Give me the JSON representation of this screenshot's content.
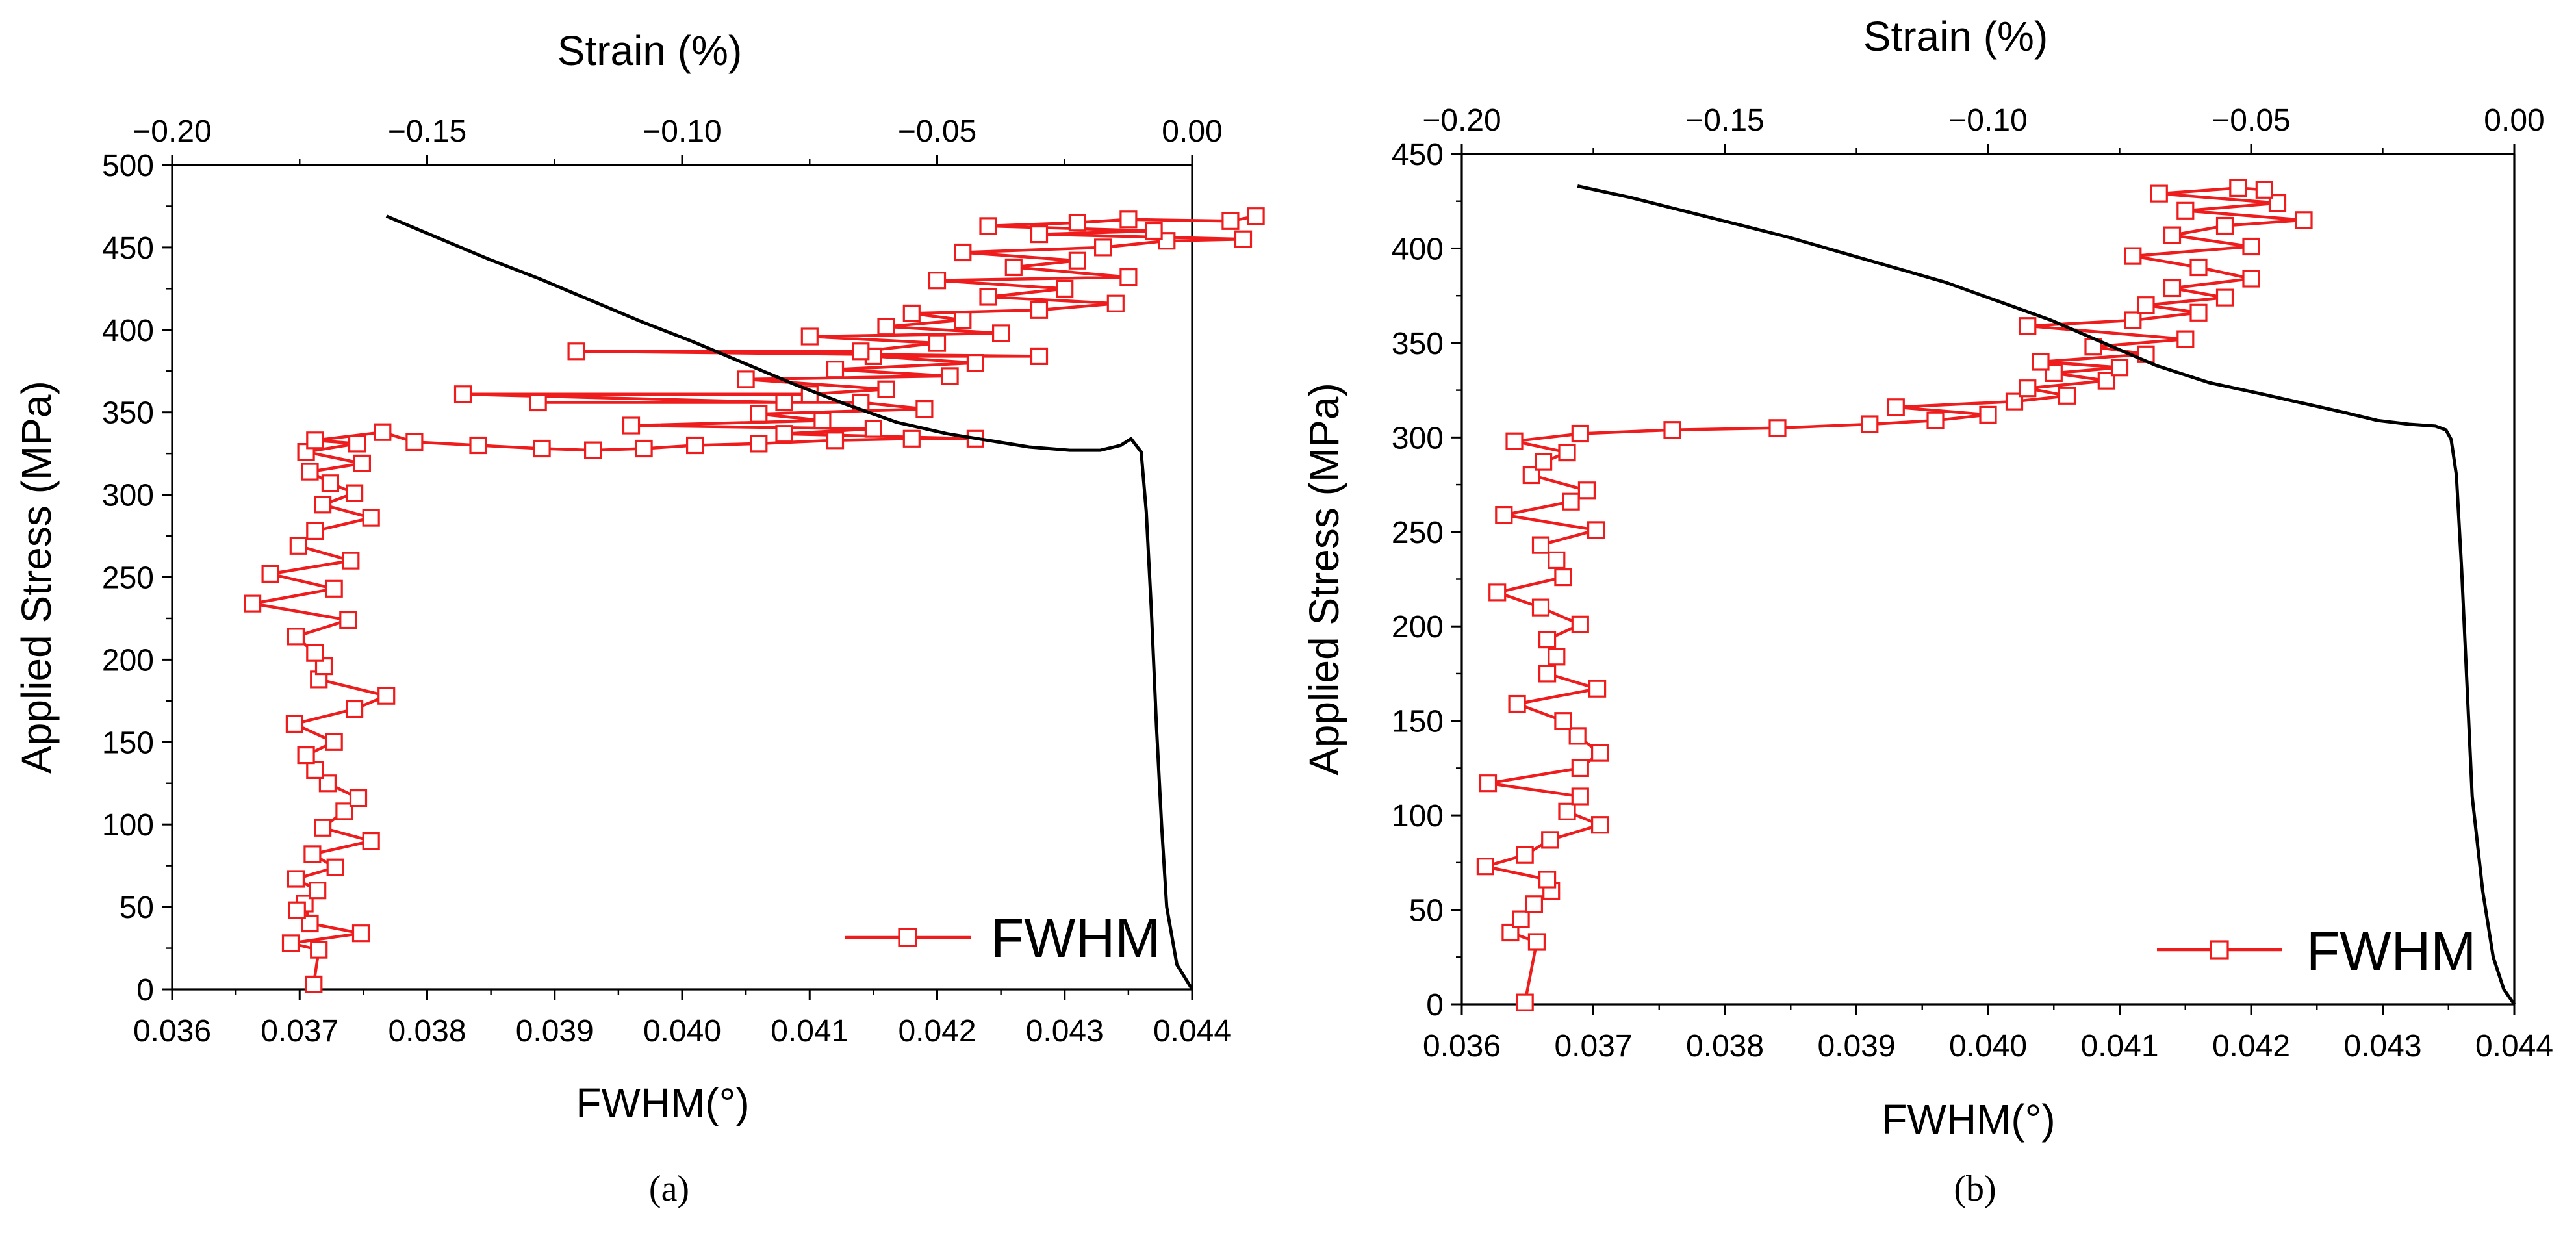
{
  "chart_data": [
    {
      "type": "line",
      "panel_label": "(a)",
      "title": "",
      "xlabel": "FWHM(°)",
      "ylabel": "Applied Stress (MPa)",
      "top_xlabel": "Strain (%)",
      "xlim": [
        0.036,
        0.044
      ],
      "ylim": [
        0,
        500
      ],
      "top_xlim": [
        -0.2,
        0.0
      ],
      "xticks": [
        0.036,
        0.037,
        0.038,
        0.039,
        0.04,
        0.041,
        0.042,
        0.043,
        0.044
      ],
      "xtick_labels": [
        "0.036",
        "0.037",
        "0.038",
        "0.039",
        "0.040",
        "0.041",
        "0.042",
        "0.043",
        "0.044"
      ],
      "yticks": [
        0,
        50,
        100,
        150,
        200,
        250,
        300,
        350,
        400,
        450,
        500
      ],
      "ytick_labels": [
        "0",
        "50",
        "100",
        "150",
        "200",
        "250",
        "300",
        "350",
        "400",
        "450",
        "500"
      ],
      "top_xticks": [
        -0.2,
        -0.15,
        -0.1,
        -0.05,
        0.0
      ],
      "top_xtick_labels": [
        "−0.20",
        "−0.15",
        "−0.10",
        "−0.05",
        "0.00"
      ],
      "legend": {
        "label": "FWHM",
        "position": "bottom-right"
      },
      "series": [
        {
          "name": "FWHM",
          "axis": "bottom",
          "color": "#ee1c1c",
          "marker": "open-square",
          "points": [
            [
              0.03711,
              3
            ],
            [
              0.03715,
              24
            ],
            [
              0.03693,
              28
            ],
            [
              0.03748,
              34
            ],
            [
              0.03708,
              40
            ],
            [
              0.03704,
              52
            ],
            [
              0.03698,
              48
            ],
            [
              0.03714,
              60
            ],
            [
              0.03697,
              67
            ],
            [
              0.03728,
              74
            ],
            [
              0.0371,
              82
            ],
            [
              0.03756,
              90
            ],
            [
              0.03718,
              98
            ],
            [
              0.03735,
              108
            ],
            [
              0.03746,
              116
            ],
            [
              0.03722,
              125
            ],
            [
              0.03712,
              133
            ],
            [
              0.03705,
              142
            ],
            [
              0.03727,
              150
            ],
            [
              0.03696,
              161
            ],
            [
              0.03743,
              170
            ],
            [
              0.03768,
              178
            ],
            [
              0.03715,
              188
            ],
            [
              0.03719,
              196
            ],
            [
              0.03712,
              204
            ],
            [
              0.03697,
              214
            ],
            [
              0.03738,
              224
            ],
            [
              0.03663,
              234
            ],
            [
              0.03727,
              243
            ],
            [
              0.03677,
              252
            ],
            [
              0.0374,
              260
            ],
            [
              0.03699,
              269
            ],
            [
              0.03712,
              278
            ],
            [
              0.03756,
              286
            ],
            [
              0.03718,
              294
            ],
            [
              0.03743,
              301
            ],
            [
              0.03724,
              307
            ],
            [
              0.03708,
              314
            ],
            [
              0.03749,
              319
            ],
            [
              0.03705,
              326
            ],
            [
              0.03745,
              331
            ],
            [
              0.03712,
              333
            ],
            [
              0.03765,
              338
            ],
            [
              0.0379,
              332
            ],
            [
              0.0384,
              330
            ],
            [
              0.0389,
              328
            ],
            [
              0.0393,
              327
            ],
            [
              0.0397,
              328
            ],
            [
              0.0401,
              330
            ],
            [
              0.0406,
              331
            ],
            [
              0.0412,
              333
            ],
            [
              0.0418,
              334
            ],
            [
              0.0423,
              334
            ],
            [
              0.0408,
              337
            ],
            [
              0.0415,
              340
            ],
            [
              0.0396,
              342
            ],
            [
              0.0411,
              345
            ],
            [
              0.0406,
              349
            ],
            [
              0.0419,
              352
            ],
            [
              0.0414,
              356
            ],
            [
              0.03887,
              356
            ],
            [
              0.0408,
              356
            ],
            [
              0.03828,
              361
            ],
            [
              0.041,
              361
            ],
            [
              0.0416,
              364
            ],
            [
              0.0405,
              370
            ],
            [
              0.0421,
              372
            ],
            [
              0.0412,
              376
            ],
            [
              0.0423,
              380
            ],
            [
              0.0415,
              384
            ],
            [
              0.0428,
              384
            ],
            [
              0.03917,
              387
            ],
            [
              0.0414,
              387
            ],
            [
              0.042,
              392
            ],
            [
              0.041,
              396
            ],
            [
              0.0425,
              398
            ],
            [
              0.0416,
              402
            ],
            [
              0.0422,
              406
            ],
            [
              0.0418,
              410
            ],
            [
              0.0428,
              412
            ],
            [
              0.0434,
              416
            ],
            [
              0.0424,
              420
            ],
            [
              0.043,
              425
            ],
            [
              0.042,
              430
            ],
            [
              0.0435,
              432
            ],
            [
              0.0426,
              438
            ],
            [
              0.0431,
              442
            ],
            [
              0.0422,
              447
            ],
            [
              0.0433,
              450
            ],
            [
              0.0438,
              454
            ],
            [
              0.0444,
              455
            ],
            [
              0.0428,
              458
            ],
            [
              0.0437,
              460
            ],
            [
              0.0424,
              463
            ],
            [
              0.0431,
              465
            ],
            [
              0.0435,
              467
            ],
            [
              0.0443,
              466
            ],
            [
              0.0445,
              469
            ]
          ]
        },
        {
          "name": "Strain",
          "axis": "top",
          "color": "#000000",
          "marker": "none",
          "points": [
            [
              -0.158,
              469
            ],
            [
              -0.148,
              456
            ],
            [
              -0.138,
              443
            ],
            [
              -0.128,
              431
            ],
            [
              -0.118,
              418
            ],
            [
              -0.108,
              405
            ],
            [
              -0.098,
              393
            ],
            [
              -0.088,
              380
            ],
            [
              -0.078,
              367
            ],
            [
              -0.068,
              355
            ],
            [
              -0.058,
              344
            ],
            [
              -0.048,
              337
            ],
            [
              -0.04,
              333
            ],
            [
              -0.032,
              329
            ],
            [
              -0.024,
              327
            ],
            [
              -0.018,
              327
            ],
            [
              -0.014,
              330
            ],
            [
              -0.012,
              334
            ],
            [
              -0.01,
              326
            ],
            [
              -0.009,
              290
            ],
            [
              -0.008,
              230
            ],
            [
              -0.007,
              160
            ],
            [
              -0.006,
              100
            ],
            [
              -0.005,
              50
            ],
            [
              -0.003,
              15
            ],
            [
              0.0,
              0
            ]
          ]
        }
      ]
    },
    {
      "type": "line",
      "panel_label": "(b)",
      "title": "",
      "xlabel": "FWHM(°)",
      "ylabel": "Applied Stress (MPa)",
      "top_xlabel": "Strain (%)",
      "xlim": [
        0.036,
        0.044
      ],
      "ylim": [
        0,
        450
      ],
      "top_xlim": [
        -0.2,
        0.0
      ],
      "xticks": [
        0.036,
        0.037,
        0.038,
        0.039,
        0.04,
        0.041,
        0.042,
        0.043,
        0.044
      ],
      "xtick_labels": [
        "0.036",
        "0.037",
        "0.038",
        "0.039",
        "0.040",
        "0.041",
        "0.042",
        "0.043",
        "0.044"
      ],
      "yticks": [
        0,
        50,
        100,
        150,
        200,
        250,
        300,
        350,
        400,
        450
      ],
      "ytick_labels": [
        "0",
        "50",
        "100",
        "150",
        "200",
        "250",
        "300",
        "350",
        "400",
        "450"
      ],
      "top_xticks": [
        -0.2,
        -0.15,
        -0.1,
        -0.05,
        0.0
      ],
      "top_xtick_labels": [
        "−0.20",
        "−0.15",
        "−0.10",
        "−0.05",
        "0.00"
      ],
      "legend": {
        "label": "FWHM",
        "position": "bottom-right"
      },
      "series": [
        {
          "name": "FWHM",
          "axis": "bottom",
          "color": "#ee1c1c",
          "marker": "open-square",
          "points": [
            [
              0.03648,
              1
            ],
            [
              0.03657,
              33
            ],
            [
              0.03637,
              38
            ],
            [
              0.03645,
              45
            ],
            [
              0.03655,
              53
            ],
            [
              0.03668,
              60
            ],
            [
              0.03665,
              66
            ],
            [
              0.03618,
              73
            ],
            [
              0.03648,
              79
            ],
            [
              0.03667,
              87
            ],
            [
              0.03705,
              95
            ],
            [
              0.0368,
              102
            ],
            [
              0.0369,
              110
            ],
            [
              0.0362,
              117
            ],
            [
              0.0369,
              125
            ],
            [
              0.03705,
              133
            ],
            [
              0.03688,
              142
            ],
            [
              0.03677,
              150
            ],
            [
              0.03642,
              159
            ],
            [
              0.03703,
              167
            ],
            [
              0.03665,
              175
            ],
            [
              0.03672,
              184
            ],
            [
              0.03665,
              193
            ],
            [
              0.0369,
              201
            ],
            [
              0.0366,
              210
            ],
            [
              0.03627,
              218
            ],
            [
              0.03677,
              226
            ],
            [
              0.03672,
              235
            ],
            [
              0.0366,
              243
            ],
            [
              0.03702,
              251
            ],
            [
              0.03632,
              259
            ],
            [
              0.03683,
              266
            ],
            [
              0.03695,
              272
            ],
            [
              0.03653,
              280
            ],
            [
              0.03662,
              287
            ],
            [
              0.0368,
              292
            ],
            [
              0.0364,
              298
            ],
            [
              0.0369,
              302
            ],
            [
              0.0376,
              304
            ],
            [
              0.0384,
              305
            ],
            [
              0.0391,
              307
            ],
            [
              0.0396,
              309
            ],
            [
              0.04,
              312
            ],
            [
              0.0393,
              316
            ],
            [
              0.0402,
              319
            ],
            [
              0.0406,
              322
            ],
            [
              0.0403,
              326
            ],
            [
              0.0409,
              330
            ],
            [
              0.0405,
              334
            ],
            [
              0.041,
              337
            ],
            [
              0.0404,
              340
            ],
            [
              0.0412,
              344
            ],
            [
              0.0408,
              348
            ],
            [
              0.0415,
              352
            ],
            [
              0.0403,
              359
            ],
            [
              0.0411,
              362
            ],
            [
              0.0416,
              366
            ],
            [
              0.0412,
              370
            ],
            [
              0.0418,
              374
            ],
            [
              0.0414,
              379
            ],
            [
              0.042,
              384
            ],
            [
              0.0416,
              390
            ],
            [
              0.0411,
              396
            ],
            [
              0.042,
              401
            ],
            [
              0.0414,
              407
            ],
            [
              0.0418,
              412
            ],
            [
              0.0424,
              415
            ],
            [
              0.0415,
              420
            ],
            [
              0.0422,
              424
            ],
            [
              0.0413,
              429
            ],
            [
              0.0419,
              432
            ],
            [
              0.0421,
              431
            ]
          ]
        },
        {
          "name": "Strain",
          "axis": "top",
          "color": "#000000",
          "marker": "none",
          "points": [
            [
              -0.178,
              433
            ],
            [
              -0.168,
              427
            ],
            [
              -0.158,
              420
            ],
            [
              -0.148,
              413
            ],
            [
              -0.138,
              406
            ],
            [
              -0.128,
              398
            ],
            [
              -0.118,
              390
            ],
            [
              -0.108,
              382
            ],
            [
              -0.098,
              372
            ],
            [
              -0.088,
              362
            ],
            [
              -0.078,
              350
            ],
            [
              -0.068,
              338
            ],
            [
              -0.058,
              329
            ],
            [
              -0.048,
              323
            ],
            [
              -0.04,
              318
            ],
            [
              -0.032,
              313
            ],
            [
              -0.026,
              309
            ],
            [
              -0.02,
              307
            ],
            [
              -0.015,
              306
            ],
            [
              -0.013,
              304
            ],
            [
              -0.012,
              299
            ],
            [
              -0.011,
              280
            ],
            [
              -0.01,
              230
            ],
            [
              -0.009,
              170
            ],
            [
              -0.008,
              110
            ],
            [
              -0.006,
              60
            ],
            [
              -0.004,
              25
            ],
            [
              -0.002,
              8
            ],
            [
              0.0,
              0
            ]
          ]
        }
      ]
    }
  ]
}
